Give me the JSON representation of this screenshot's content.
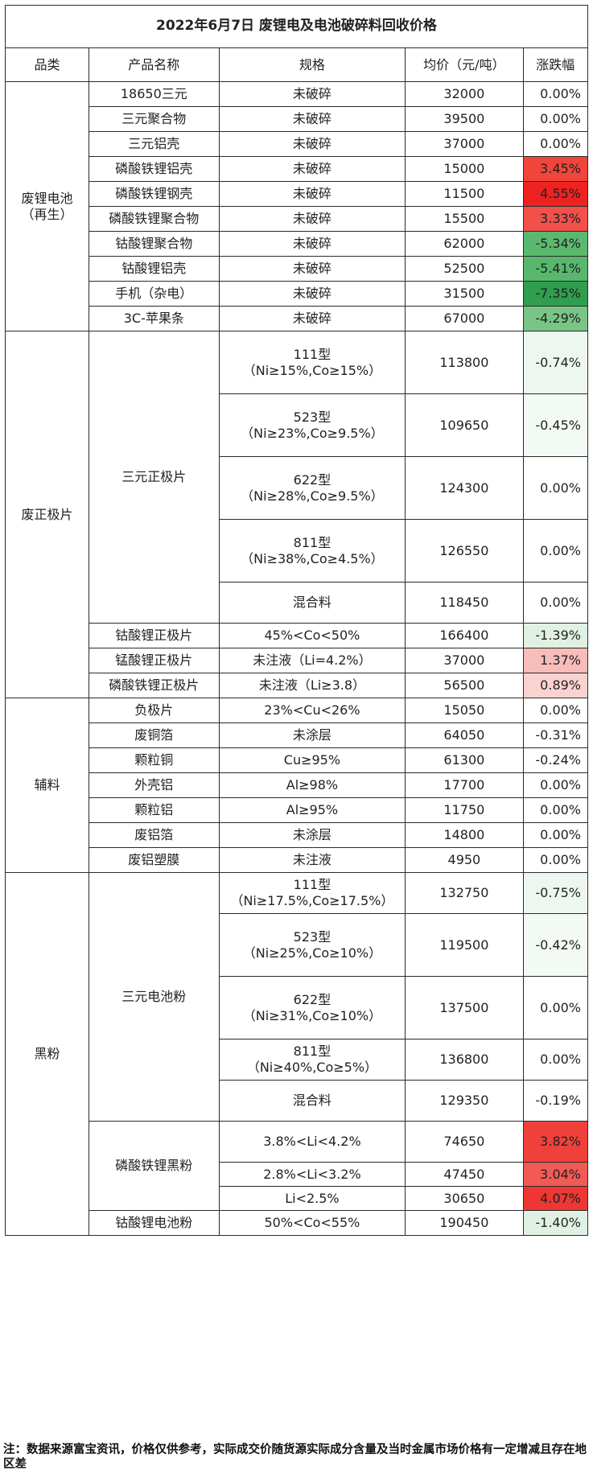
{
  "title": "2022年6月7日 废锂电及电池破碎料回收价格",
  "headers": [
    "品类",
    "产品名称",
    "规格",
    "均价（元/吨）",
    "涨跌幅"
  ],
  "rows": [
    {
      "cat": "废锂电池\n（再生）",
      "cat_span": 10,
      "name": "18650三元",
      "name_span": 1,
      "spec": "未破碎",
      "price": "32000",
      "chg": "0.00%",
      "color": "#ffffff",
      "size": "r36"
    },
    {
      "name": "三元聚合物",
      "name_span": 1,
      "spec": "未破碎",
      "price": "39500",
      "chg": "0.00%",
      "color": "#ffffff",
      "size": "r36"
    },
    {
      "name": "三元铝壳",
      "name_span": 1,
      "spec": "未破碎",
      "price": "37000",
      "chg": "0.00%",
      "color": "#ffffff",
      "size": "r36"
    },
    {
      "name": "磷酸铁锂铝壳",
      "name_span": 1,
      "spec": "未破碎",
      "price": "15000",
      "chg": "3.45%",
      "color": "#f1453c",
      "size": "r36"
    },
    {
      "name": "磷酸铁锂钢壳",
      "name_span": 1,
      "spec": "未破碎",
      "price": "11500",
      "chg": "4.55%",
      "color": "#ed2221",
      "size": "r36"
    },
    {
      "name": "磷酸铁锂聚合物",
      "name_span": 1,
      "spec": "未破碎",
      "price": "15500",
      "chg": "3.33%",
      "color": "#f2504a",
      "size": "r36"
    },
    {
      "name": "钴酸锂聚合物",
      "name_span": 1,
      "spec": "未破碎",
      "price": "62000",
      "chg": "-5.34%",
      "color": "#5ab96f",
      "size": "r36"
    },
    {
      "name": "钴酸锂铝壳",
      "name_span": 1,
      "spec": "未破碎",
      "price": "52500",
      "chg": "-5.41%",
      "color": "#57b86d",
      "size": "r36"
    },
    {
      "name": "手机（杂电）",
      "name_span": 1,
      "spec": "未破碎",
      "price": "31500",
      "chg": "-7.35%",
      "color": "#2f9e4f",
      "size": "r36"
    },
    {
      "name": "3C-苹果条",
      "name_span": 1,
      "spec": "未破碎",
      "price": "67000",
      "chg": "-4.29%",
      "color": "#78c586",
      "size": "r36"
    },
    {
      "cat": "废正极片",
      "cat_span": 8,
      "name": "三元正极片",
      "name_span": 5,
      "spec": "111型\n（Ni≥15%,Co≥15%）",
      "price": "113800",
      "chg": "-0.74%",
      "color": "#eef7ef",
      "size": "r77"
    },
    {
      "spec": "523型\n（Ni≥23%,Co≥9.5%）",
      "price": "109650",
      "chg": "-0.45%",
      "color": "#f3faf4",
      "size": "r77"
    },
    {
      "spec": "622型\n（Ni≥28%,Co≥9.5%）",
      "price": "124300",
      "chg": "0.00%",
      "color": "#ffffff",
      "size": "r77"
    },
    {
      "spec": "811型\n（Ni≥38%,Co≥4.5%）",
      "price": "126550",
      "chg": "0.00%",
      "color": "#ffffff",
      "size": "r77"
    },
    {
      "spec": "混合料",
      "price": "118450",
      "chg": "0.00%",
      "color": "#ffffff",
      "size": "r57"
    },
    {
      "name": "钴酸锂正极片",
      "name_span": 1,
      "spec": "45%<Co<50%",
      "price": "166400",
      "chg": "-1.39%",
      "color": "#e0f1e3",
      "size": "r36"
    },
    {
      "name": "锰酸锂正极片",
      "name_span": 1,
      "spec": "未注液（Li=4.2%）",
      "price": "37000",
      "chg": "1.37%",
      "color": "#f7bdbb",
      "size": "r36"
    },
    {
      "name": "磷酸铁锂正极片",
      "name_span": 1,
      "spec": "未注液（Li≥3.8）",
      "price": "56500",
      "chg": "0.89%",
      "color": "#fad3d1",
      "size": "r36"
    },
    {
      "cat": "辅料",
      "cat_span": 7,
      "name": "负极片",
      "name_span": 1,
      "spec": "23%<Cu<26%",
      "price": "15050",
      "chg": "0.00%",
      "color": "#ffffff",
      "size": "r36"
    },
    {
      "name": "废铜箔",
      "name_span": 1,
      "spec": "未涂层",
      "price": "64050",
      "chg": "-0.31%",
      "color": "#ffffff",
      "size": "r36"
    },
    {
      "name": "颗粒铜",
      "name_span": 1,
      "spec": "Cu≥95%",
      "price": "61300",
      "chg": "-0.24%",
      "color": "#ffffff",
      "size": "r36"
    },
    {
      "name": "外壳铝",
      "name_span": 1,
      "spec": "Al≥98%",
      "price": "17700",
      "chg": "0.00%",
      "color": "#ffffff",
      "size": "r36"
    },
    {
      "name": "颗粒铝",
      "name_span": 1,
      "spec": "Al≥95%",
      "price": "11750",
      "chg": "0.00%",
      "color": "#ffffff",
      "size": "r36"
    },
    {
      "name": "废铝箔",
      "name_span": 1,
      "spec": "未涂层",
      "price": "14800",
      "chg": "0.00%",
      "color": "#ffffff",
      "size": "r36"
    },
    {
      "name": "废铝塑膜",
      "name_span": 1,
      "spec": "未注液",
      "price": "4950",
      "chg": "0.00%",
      "color": "#ffffff",
      "size": "r36"
    },
    {
      "cat": "黑粉",
      "cat_span": 9,
      "name": "三元电池粉",
      "name_span": 5,
      "spec": "111型\n（Ni≥17.5%,Co≥17.5%）",
      "price": "132750",
      "chg": "-0.75%",
      "color": "#eef7ef",
      "size": "r57"
    },
    {
      "spec": "523型\n（Ni≥25%,Co≥10%）",
      "price": "119500",
      "chg": "-0.42%",
      "color": "#f3faf4",
      "size": "r77"
    },
    {
      "spec": "622型\n（Ni≥31%,Co≥10%）",
      "price": "137500",
      "chg": "0.00%",
      "color": "#ffffff",
      "size": "r77"
    },
    {
      "spec": "811型\n（Ni≥40%,Co≥5%）",
      "price": "136800",
      "chg": "0.00%",
      "color": "#ffffff",
      "size": "r57"
    },
    {
      "spec": "混合料",
      "price": "129350",
      "chg": "-0.19%",
      "color": "#ffffff",
      "size": "r57"
    },
    {
      "name": "磷酸铁锂黑粉",
      "name_span": 3,
      "spec": "3.8%<Li<4.2%",
      "price": "74650",
      "chg": "3.82%",
      "color": "#f0403a",
      "size": "r57"
    },
    {
      "spec": "2.8%<Li<3.2%",
      "price": "47450",
      "chg": "3.04%",
      "color": "#f25a55",
      "size": "r31"
    },
    {
      "spec": "Li<2.5%",
      "price": "30650",
      "chg": "4.07%",
      "color": "#ee3632",
      "size": "r31"
    },
    {
      "name": "钴酸锂电池粉",
      "name_span": 1,
      "spec": "50%<Co<55%",
      "price": "190450",
      "chg": "-1.40%",
      "color": "#e0f1e3",
      "size": "r36"
    }
  ],
  "note": "注：数据来源富宝资讯，价格仅供参考，实际成交价随货源实际成分含量及当时金属市场价格有一定增减且存在地区差"
}
